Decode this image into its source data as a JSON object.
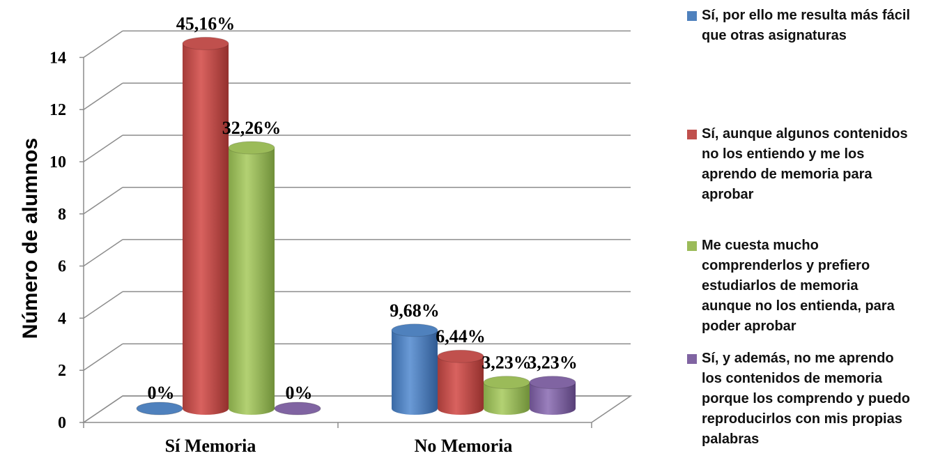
{
  "chart_data": {
    "type": "bar",
    "categories": [
      "Sí Memoria",
      "No Memoria"
    ],
    "ylabel": "Número de alumnos",
    "ylim": [
      0,
      14
    ],
    "yticks": [
      "0",
      "2",
      "4",
      "6",
      "8",
      "10",
      "12",
      "14"
    ],
    "grid": true,
    "legend_position": "right",
    "series": [
      {
        "name": "Sí, por ello me resulta más fácil que otras asignaturas",
        "color": "#4f81bd",
        "values": [
          0,
          3
        ],
        "labels": [
          "0%",
          "9,68%"
        ]
      },
      {
        "name": "Sí, aunque algunos contenidos no los entiendo y me los aprendo de memoria para aprobar",
        "color": "#c0504d",
        "values": [
          14,
          2
        ],
        "labels": [
          "45,16%",
          "6,44%"
        ]
      },
      {
        "name": "Me cuesta mucho comprenderlos y prefiero estudiarlos de memoria aunque no los entienda, para poder aprobar",
        "color": "#9bbb59",
        "values": [
          10,
          1
        ],
        "labels": [
          "32,26%",
          "3,23%"
        ]
      },
      {
        "name": "Sí, y además, no me aprendo los contenidos de memoria porque los comprendo y puedo reproducirlos con mis propias palabras",
        "color": "#8064a2",
        "values": [
          0,
          1
        ],
        "labels": [
          "0%",
          "3,23%"
        ]
      }
    ]
  },
  "legend": {
    "items": [
      {
        "lines": [
          "Sí, por ello me resulta más fácil",
          "que otras asignaturas"
        ]
      },
      {
        "lines": [
          "Sí, aunque algunos contenidos",
          "no los entiendo y me los",
          "aprendo de memoria para",
          "aprobar"
        ]
      },
      {
        "lines": [
          "Me cuesta mucho",
          "comprenderlos y prefiero",
          "estudiarlos de memoria",
          "aunque no los entienda, para",
          "poder aprobar"
        ]
      },
      {
        "lines": [
          "Sí, y además, no me aprendo",
          "los contenidos de memoria",
          "porque los comprendo y puedo",
          "reproducirlos con mis propias",
          "palabras"
        ]
      }
    ]
  }
}
